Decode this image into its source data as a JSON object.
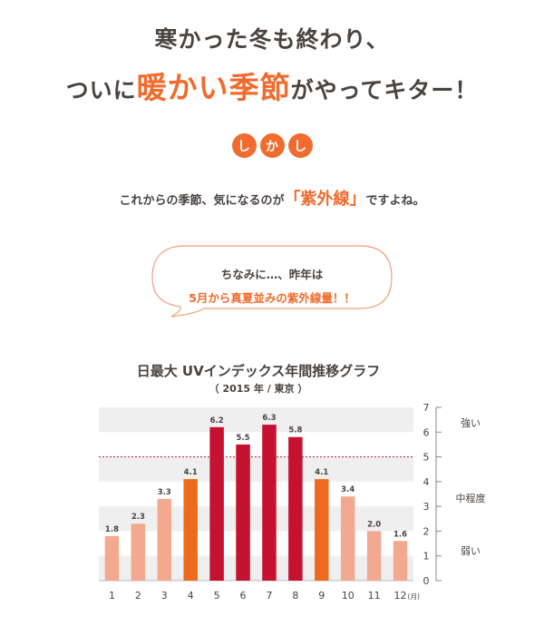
{
  "header": {
    "line1": "寒かった冬も終わり、",
    "line2_pre": "ついに",
    "line2_accent": "暖かい季節",
    "line2_post": "がやってキター！"
  },
  "shikashi": [
    "し",
    "か",
    "し"
  ],
  "subtitle": {
    "pre": "これからの季節、気になるのが",
    "accent": "「紫外線」",
    "post": "ですよね。"
  },
  "bubble": {
    "line1": "ちなみに…、昨年は",
    "line2": "5月から真夏並みの紫外線量！！"
  },
  "colors": {
    "accent": "#f06b2d",
    "light_bar": "#f2a990",
    "mid_bar": "#ee6a1c",
    "strong_bar": "#c41230",
    "band": "#efefef",
    "text": "#4a4340"
  },
  "chart_data": {
    "type": "bar",
    "title": "日最大 UVインデックス年間推移グラフ",
    "subtitle": "（ 2015 年 / 東京 ）",
    "categories": [
      "1",
      "2",
      "3",
      "4",
      "5",
      "6",
      "7",
      "8",
      "9",
      "10",
      "11",
      "12"
    ],
    "x_unit": "(月)",
    "values": [
      1.8,
      2.3,
      3.3,
      4.1,
      6.2,
      5.5,
      6.3,
      5.8,
      4.1,
      3.4,
      2.0,
      1.6
    ],
    "value_labels": [
      "1.8",
      "2.3",
      "3.3",
      "4.1",
      "6.2",
      "5.5",
      "6.3",
      "5.8",
      "4.1",
      "3.4",
      "2.0",
      "1.6"
    ],
    "levels": [
      "light",
      "light",
      "light",
      "mid",
      "strong",
      "strong",
      "strong",
      "strong",
      "mid",
      "light",
      "light",
      "light"
    ],
    "ylim": [
      0,
      7
    ],
    "yticks": [
      "0",
      "1",
      "2",
      "3",
      "4",
      "5",
      "6",
      "7"
    ],
    "reference_line": 5,
    "bands": [
      {
        "label": "強い",
        "from": 5,
        "to": 7
      },
      {
        "label": "中程度",
        "from": 2,
        "to": 5
      },
      {
        "label": "弱い",
        "from": 0,
        "to": 2
      }
    ],
    "grid": "alternating bands"
  }
}
